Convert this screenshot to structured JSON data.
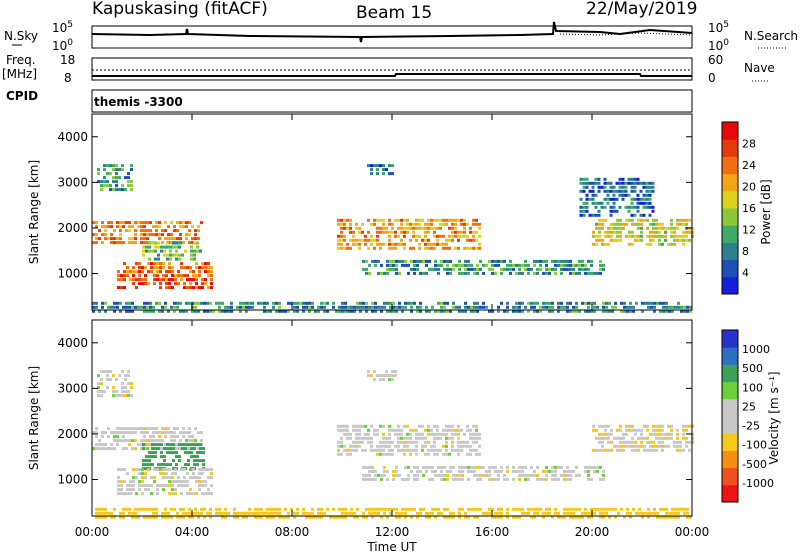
{
  "header": {
    "station": "Kapuskasing (fitACF)",
    "beam": "Beam 15",
    "date": "22/May/2019"
  },
  "top_panels": {
    "nsky_label": "N.Sky",
    "nsky_ticks": [
      "10^5",
      "10^0"
    ],
    "nsearch_label": "N.Search",
    "nsearch_ticks": [
      "10^5",
      "10^0"
    ],
    "freq_label_1": "Freq.",
    "freq_label_2": "[MHz]",
    "freq_ticks": [
      "18",
      "8"
    ],
    "nave_label": "Nave",
    "nave_ticks": [
      "60",
      "0"
    ],
    "cpid_label": "CPID",
    "cpid_value": "themis -3300"
  },
  "colors": {
    "power_scale": [
      "#1420dc",
      "#1f4fb4",
      "#2e7f90",
      "#3faa64",
      "#8cc83c",
      "#dcd21e",
      "#f5a514",
      "#f06e0f",
      "#e13c0a",
      "#e60a0a"
    ],
    "velocity_scale": [
      "#2833c8",
      "#2f6fc0",
      "#3ca056",
      "#6ccf3a",
      "#c8c8c8",
      "#c8c8c8",
      "#f5c81e",
      "#f58c14",
      "#f0501e",
      "#ee1414"
    ]
  },
  "chart_data": [
    {
      "type": "heatmap",
      "panel": "power",
      "ylabel": "Slant Range [km]",
      "yticks": [
        "1000",
        "2000",
        "3000",
        "4000"
      ],
      "ylim": [
        200,
        4500
      ],
      "xlim": [
        0,
        24
      ],
      "colorbar_label": "Power [dB]",
      "colorbar_ticks": [
        "4",
        "8",
        "12",
        "16",
        "20",
        "24",
        "28"
      ],
      "blobs": [
        {
          "t0": 0.0,
          "t1": 4.4,
          "r0": 1650,
          "r1": 2150,
          "value": 22
        },
        {
          "t0": 0.2,
          "t1": 1.6,
          "r0": 2800,
          "r1": 3400,
          "value": 10
        },
        {
          "t0": 1.0,
          "t1": 4.8,
          "r0": 700,
          "r1": 1250,
          "value": 24
        },
        {
          "t0": 2.0,
          "t1": 4.3,
          "r0": 1300,
          "r1": 1700,
          "value": 12
        },
        {
          "t0": 9.8,
          "t1": 15.5,
          "r0": 1500,
          "r1": 2200,
          "value": 20
        },
        {
          "t0": 10.8,
          "t1": 20.5,
          "r0": 1000,
          "r1": 1300,
          "value": 9
        },
        {
          "t0": 11.0,
          "t1": 12.2,
          "r0": 3200,
          "r1": 3400,
          "value": 6
        },
        {
          "t0": 20.0,
          "t1": 24.0,
          "r0": 1600,
          "r1": 2200,
          "value": 16
        },
        {
          "t0": 19.5,
          "t1": 22.5,
          "r0": 2300,
          "r1": 3100,
          "value": 6
        },
        {
          "t0": 0.0,
          "t1": 24.0,
          "r0": 200,
          "r1": 380,
          "value": 8
        }
      ]
    },
    {
      "type": "heatmap",
      "panel": "velocity",
      "ylabel": "Slant Range [km]",
      "yticks": [
        "1000",
        "2000",
        "3000",
        "4000"
      ],
      "ylim": [
        200,
        4500
      ],
      "xlim": [
        0,
        24
      ],
      "xticks": [
        "00:00",
        "04:00",
        "08:00",
        "12:00",
        "16:00",
        "20:00",
        "00:00"
      ],
      "xlabel": "Time UT",
      "colorbar_label": "Velocity [m s⁻¹]",
      "colorbar_ticks": [
        "1000",
        "500",
        "100",
        "25",
        "-25",
        "-100",
        "-500",
        "-1000"
      ],
      "blobs": [
        {
          "t0": 0.0,
          "t1": 4.4,
          "r0": 1650,
          "r1": 2150,
          "value": 0
        },
        {
          "t0": 2.0,
          "t1": 4.5,
          "r0": 1200,
          "r1": 1800,
          "value": 150
        },
        {
          "t0": 1.0,
          "t1": 4.8,
          "r0": 700,
          "r1": 1250,
          "value": 0
        },
        {
          "t0": 0.2,
          "t1": 1.6,
          "r0": 2800,
          "r1": 3400,
          "value": 0
        },
        {
          "t0": 9.8,
          "t1": 15.5,
          "r0": 1500,
          "r1": 2200,
          "value": 0
        },
        {
          "t0": 10.8,
          "t1": 20.5,
          "r0": 1000,
          "r1": 1300,
          "value": 0
        },
        {
          "t0": 11.0,
          "t1": 12.2,
          "r0": 3200,
          "r1": 3400,
          "value": 0
        },
        {
          "t0": 20.0,
          "t1": 24.0,
          "r0": 1600,
          "r1": 2200,
          "value": -20
        },
        {
          "t0": 0.0,
          "t1": 24.0,
          "r0": 200,
          "r1": 380,
          "value": -60
        }
      ]
    }
  ]
}
